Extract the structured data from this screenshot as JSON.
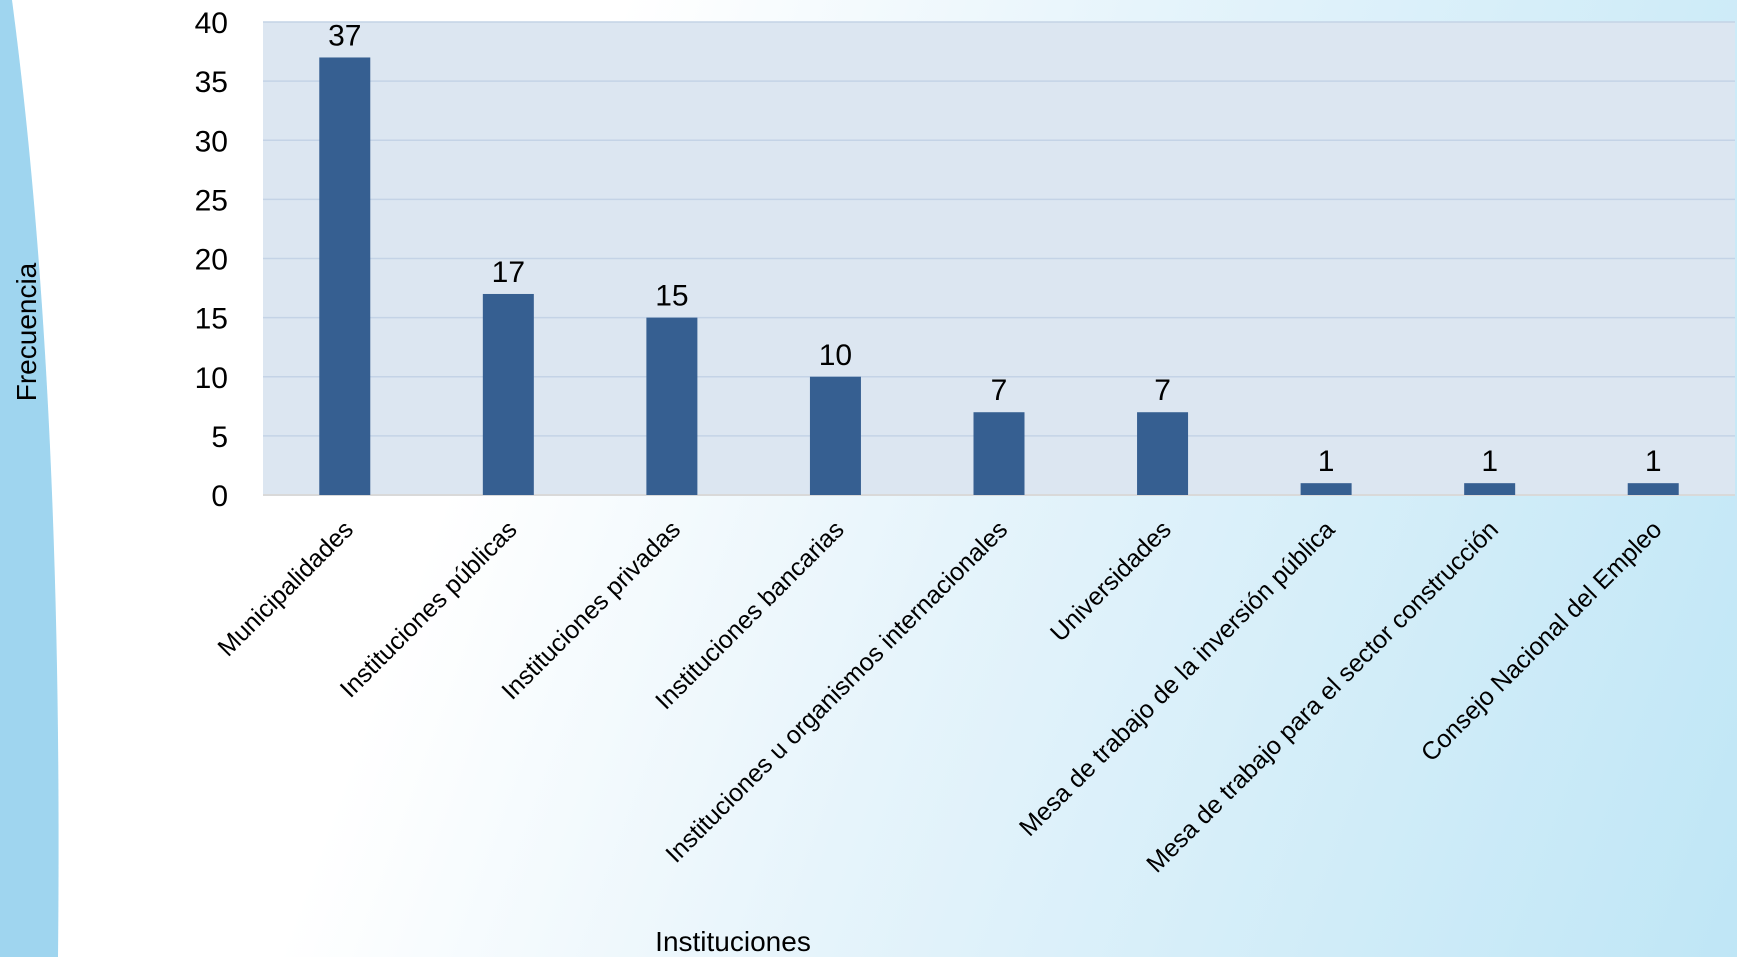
{
  "chart_data": {
    "type": "bar",
    "categories": [
      "Municipalidades",
      "Instituciones públicas",
      "Instituciones privadas",
      "Instituciones bancarias",
      "Instituciones u organismos internacionales",
      "Universidades",
      "Mesa de trabajo de la inversión pública",
      "Mesa de trabajo para el sector construcción",
      "Consejo Nacional del Empleo"
    ],
    "values": [
      37,
      17,
      15,
      10,
      7,
      7,
      1,
      1,
      1
    ],
    "xlabel": "Instituciones",
    "ylabel": "Frecuencia",
    "ylim": [
      0,
      40
    ],
    "yticks": [
      0,
      5,
      10,
      15,
      20,
      25,
      30,
      35,
      40
    ],
    "grid": true,
    "legend": "none",
    "colors": {
      "bar": "#365f91",
      "plot_background": "#dce6f1",
      "gridline": "#c4d3e6",
      "side_band": "#9fd5ef"
    }
  }
}
